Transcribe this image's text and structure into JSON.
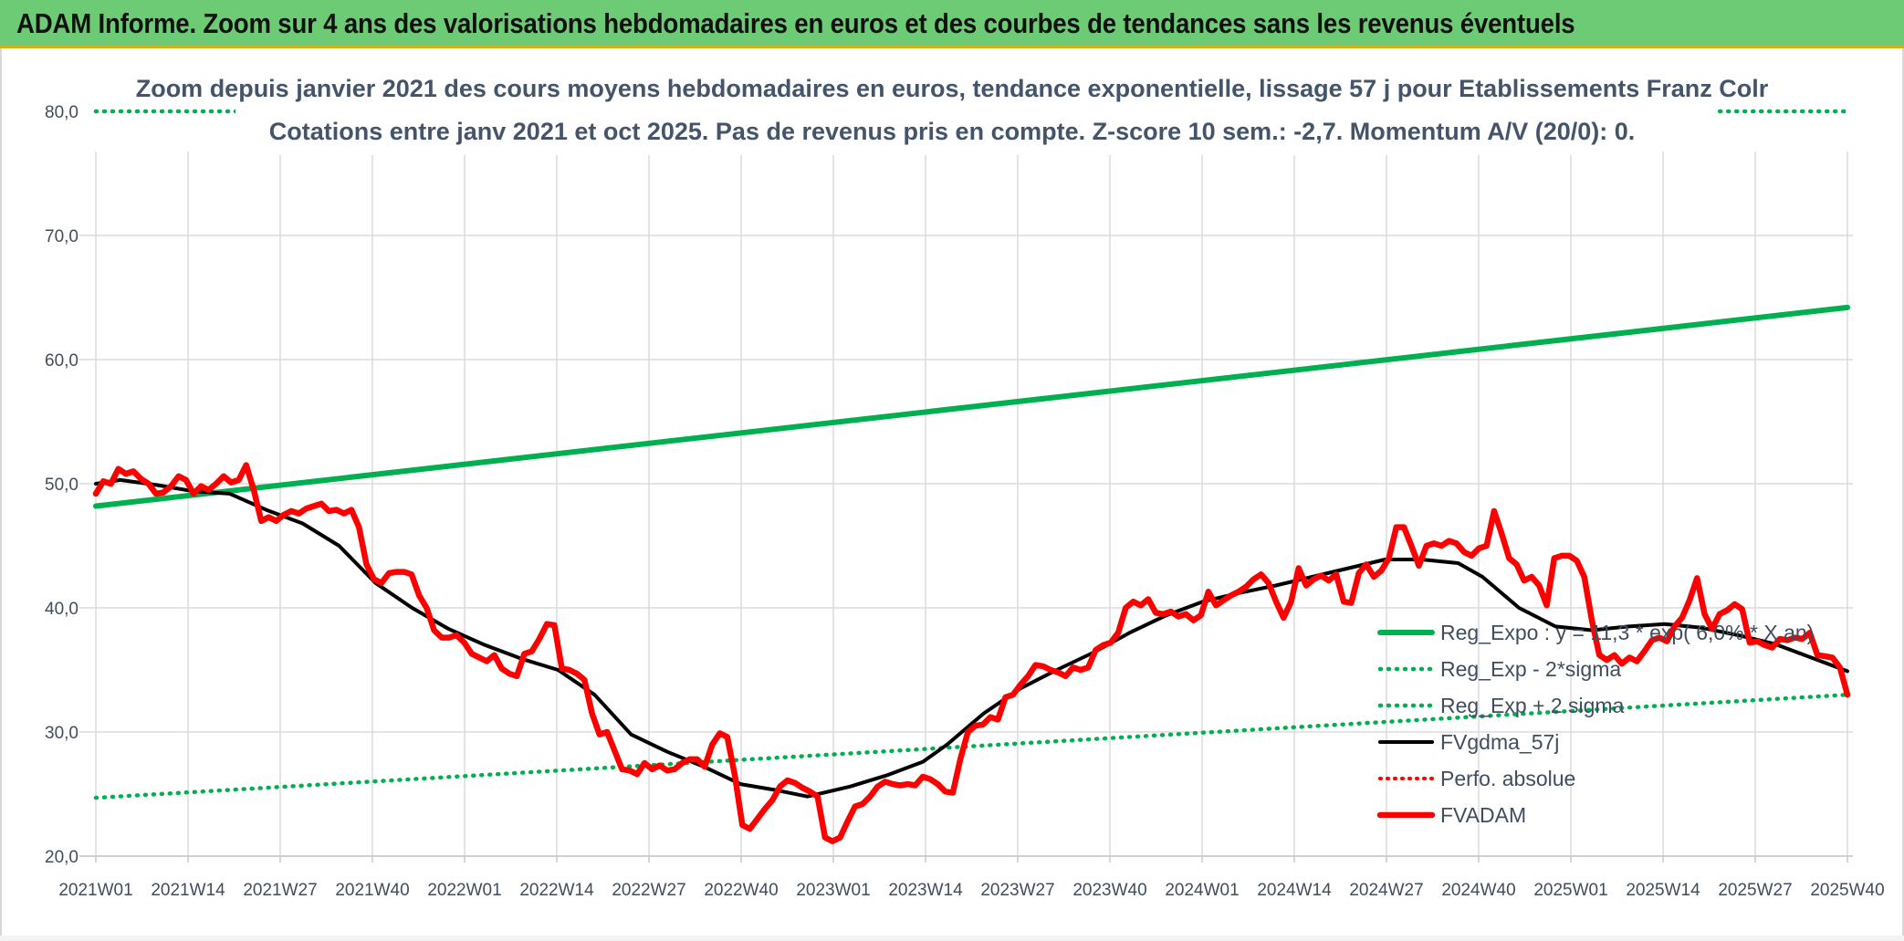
{
  "header": {
    "title": "ADAM Informe. Zoom sur 4 ans des valorisations hebdomadaires en euros et des courbes de tendances sans les revenus éventuels"
  },
  "chart_data": {
    "type": "line",
    "subtitle_line1": "Zoom depuis janvier 2021 des cours moyens hebdomadaires en euros, tendance exponentielle, lissage 57 j pour Etablissements Franz Colr",
    "subtitle_line2": "Cotations entre janv 2021 et oct 2025. Pas de revenus pris en compte. Z-score 10 sem.: -2,7. Momentum A/V (20/0): 0.",
    "ylim": [
      20,
      80
    ],
    "y_ticks": [
      "20,0",
      "30,0",
      "40,0",
      "50,0",
      "60,0",
      "70,0",
      "80,0"
    ],
    "y_tick_values": [
      20,
      30,
      40,
      50,
      60,
      70,
      80
    ],
    "x_ticks": [
      "2021W01",
      "2021W14",
      "2021W27",
      "2021W40",
      "2022W01",
      "2022W14",
      "2022W27",
      "2022W40",
      "2023W01",
      "2023W14",
      "2023W27",
      "2023W40",
      "2024W01",
      "2024W14",
      "2024W27",
      "2024W40",
      "2025W01",
      "2025W14",
      "2025W27",
      "2025W40"
    ],
    "grid": true,
    "legend_position": "right",
    "series": [
      {
        "name": "Reg_Expo : y = 11,3 * exp( 6,0% * X  an)",
        "color": "#00b050",
        "style": "solid",
        "points": [
          [
            0,
            48.2
          ],
          [
            247,
            64.2
          ]
        ]
      },
      {
        "name": "Reg_Exp - 2*sigma",
        "color": "#00b050",
        "style": "dotted",
        "points": [
          [
            0,
            24.7
          ],
          [
            247,
            33.0
          ]
        ]
      },
      {
        "name": "Reg_Exp + 2 sigma",
        "color": "#00b050",
        "style": "dotted",
        "points": [
          [
            0,
            80.0
          ],
          [
            22,
            80.0
          ],
          [
            null,
            null
          ],
          [
            229,
            80.0
          ],
          [
            247,
            80.0
          ]
        ]
      },
      {
        "name": "FVgdma_57j",
        "color": "#000000",
        "style": "solid",
        "points": [
          [
            0,
            50.0
          ],
          [
            4,
            50.3
          ],
          [
            10,
            49.9
          ],
          [
            16,
            49.4
          ],
          [
            22,
            49.2
          ],
          [
            28,
            47.9
          ],
          [
            34,
            46.8
          ],
          [
            40,
            45.0
          ],
          [
            46,
            42.0
          ],
          [
            52,
            40.0
          ],
          [
            58,
            38.3
          ],
          [
            64,
            37.0
          ],
          [
            70,
            35.9
          ],
          [
            76,
            35.0
          ],
          [
            82,
            33.0
          ],
          [
            88,
            29.8
          ],
          [
            94,
            28.4
          ],
          [
            100,
            27.2
          ],
          [
            106,
            25.8
          ],
          [
            112,
            25.3
          ],
          [
            117,
            24.8
          ],
          [
            124,
            25.6
          ],
          [
            130,
            26.5
          ],
          [
            136,
            27.6
          ],
          [
            140,
            29.0
          ],
          [
            146,
            31.5
          ],
          [
            152,
            33.5
          ],
          [
            158,
            35.0
          ],
          [
            164,
            36.4
          ],
          [
            170,
            38.0
          ],
          [
            176,
            39.4
          ],
          [
            182,
            40.5
          ],
          [
            188,
            41.2
          ],
          [
            194,
            41.8
          ],
          [
            200,
            42.5
          ],
          [
            206,
            43.2
          ],
          [
            212,
            43.9
          ],
          [
            218,
            43.9
          ],
          [
            224,
            43.6
          ],
          [
            228,
            42.5
          ],
          [
            234,
            40.0
          ],
          [
            240,
            38.5
          ],
          [
            246,
            38.2
          ],
          [
            252,
            38.5
          ],
          [
            258,
            38.7
          ],
          [
            264,
            38.4
          ],
          [
            270,
            37.8
          ],
          [
            276,
            37.1
          ],
          [
            282,
            36.0
          ],
          [
            288,
            34.9
          ]
        ]
      },
      {
        "name": "Perfo. absolue",
        "color": "#ff0000",
        "style": "dotted",
        "points": []
      },
      {
        "name": "FVADAM",
        "color": "#ff0000",
        "style": "solid",
        "points": [
          [
            0,
            49.2
          ],
          [
            1,
            50.2
          ],
          [
            2,
            50.0
          ],
          [
            3,
            51.2
          ],
          [
            4,
            50.8
          ],
          [
            5,
            51.0
          ],
          [
            6,
            50.4
          ],
          [
            7,
            50.0
          ],
          [
            8,
            49.2
          ],
          [
            9,
            49.3
          ],
          [
            10,
            49.8
          ],
          [
            11,
            50.6
          ],
          [
            12,
            50.3
          ],
          [
            13,
            49.2
          ],
          [
            14,
            49.8
          ],
          [
            15,
            49.5
          ],
          [
            16,
            50.0
          ],
          [
            17,
            50.6
          ],
          [
            18,
            50.1
          ],
          [
            19,
            50.3
          ],
          [
            20,
            51.5
          ],
          [
            21,
            49.5
          ],
          [
            22,
            47.0
          ],
          [
            23,
            47.3
          ],
          [
            24,
            47.0
          ],
          [
            25,
            47.5
          ],
          [
            26,
            47.8
          ],
          [
            27,
            47.6
          ],
          [
            28,
            48.0
          ],
          [
            29,
            48.2
          ],
          [
            30,
            48.4
          ],
          [
            31,
            47.8
          ],
          [
            32,
            47.9
          ],
          [
            33,
            47.6
          ],
          [
            34,
            47.9
          ],
          [
            35,
            46.5
          ],
          [
            36,
            43.5
          ],
          [
            37,
            42.3
          ],
          [
            38,
            42.0
          ],
          [
            39,
            42.8
          ],
          [
            40,
            42.9
          ],
          [
            41,
            42.9
          ],
          [
            42,
            42.7
          ],
          [
            43,
            41.0
          ],
          [
            44,
            40.0
          ],
          [
            45,
            38.2
          ],
          [
            46,
            37.6
          ],
          [
            47,
            37.6
          ],
          [
            48,
            37.8
          ],
          [
            49,
            37.2
          ],
          [
            50,
            36.3
          ],
          [
            51,
            36.0
          ],
          [
            52,
            35.7
          ],
          [
            53,
            36.2
          ],
          [
            54,
            35.1
          ],
          [
            55,
            34.7
          ],
          [
            56,
            34.5
          ],
          [
            57,
            36.3
          ],
          [
            58,
            36.5
          ],
          [
            59,
            37.5
          ],
          [
            60,
            38.7
          ],
          [
            61,
            38.6
          ],
          [
            62,
            35.1
          ],
          [
            63,
            35.0
          ],
          [
            64,
            34.7
          ],
          [
            65,
            34.2
          ],
          [
            66,
            31.5
          ],
          [
            67,
            29.8
          ],
          [
            68,
            30.0
          ],
          [
            69,
            28.5
          ],
          [
            70,
            27.0
          ],
          [
            71,
            26.9
          ],
          [
            72,
            26.6
          ],
          [
            73,
            27.5
          ],
          [
            74,
            27.0
          ],
          [
            75,
            27.3
          ],
          [
            76,
            26.9
          ],
          [
            77,
            27.0
          ],
          [
            78,
            27.5
          ],
          [
            79,
            27.8
          ],
          [
            80,
            27.8
          ],
          [
            81,
            27.2
          ],
          [
            82,
            29.0
          ],
          [
            83,
            29.9
          ],
          [
            84,
            29.6
          ],
          [
            85,
            26.5
          ],
          [
            86,
            22.5
          ],
          [
            87,
            22.2
          ],
          [
            88,
            23.0
          ],
          [
            89,
            23.8
          ],
          [
            90,
            24.5
          ],
          [
            91,
            25.6
          ],
          [
            92,
            26.1
          ],
          [
            93,
            25.9
          ],
          [
            94,
            25.5
          ],
          [
            95,
            25.2
          ],
          [
            96,
            24.8
          ],
          [
            97,
            21.5
          ],
          [
            98,
            21.2
          ],
          [
            99,
            21.5
          ],
          [
            100,
            22.8
          ],
          [
            101,
            24.0
          ],
          [
            102,
            24.2
          ],
          [
            103,
            24.8
          ],
          [
            104,
            25.6
          ],
          [
            105,
            26.0
          ],
          [
            106,
            25.8
          ],
          [
            107,
            25.7
          ],
          [
            108,
            25.8
          ],
          [
            109,
            25.7
          ],
          [
            110,
            26.4
          ],
          [
            111,
            26.2
          ],
          [
            112,
            25.8
          ],
          [
            113,
            25.2
          ],
          [
            114,
            25.1
          ],
          [
            115,
            27.8
          ],
          [
            116,
            30.0
          ],
          [
            117,
            30.5
          ],
          [
            118,
            30.6
          ],
          [
            119,
            31.2
          ],
          [
            120,
            31.0
          ],
          [
            121,
            32.8
          ],
          [
            122,
            33.0
          ],
          [
            123,
            33.8
          ],
          [
            124,
            34.5
          ],
          [
            125,
            35.4
          ],
          [
            126,
            35.3
          ],
          [
            127,
            35.0
          ],
          [
            128,
            34.8
          ],
          [
            129,
            34.5
          ],
          [
            130,
            35.2
          ],
          [
            131,
            35.0
          ],
          [
            132,
            35.2
          ],
          [
            133,
            36.6
          ],
          [
            134,
            37.0
          ],
          [
            135,
            37.2
          ],
          [
            136,
            38.0
          ],
          [
            137,
            40.0
          ],
          [
            138,
            40.5
          ],
          [
            139,
            40.2
          ],
          [
            140,
            40.7
          ],
          [
            141,
            39.6
          ],
          [
            142,
            39.5
          ],
          [
            143,
            39.7
          ],
          [
            144,
            39.3
          ],
          [
            145,
            39.5
          ],
          [
            146,
            39.0
          ],
          [
            147,
            39.4
          ],
          [
            148,
            41.3
          ],
          [
            149,
            40.2
          ],
          [
            150,
            40.6
          ],
          [
            151,
            41.0
          ],
          [
            152,
            41.3
          ],
          [
            153,
            41.7
          ],
          [
            154,
            42.3
          ],
          [
            155,
            42.7
          ],
          [
            156,
            42.0
          ],
          [
            157,
            40.5
          ],
          [
            158,
            39.2
          ],
          [
            159,
            40.5
          ],
          [
            160,
            43.2
          ],
          [
            161,
            41.8
          ],
          [
            162,
            42.3
          ],
          [
            163,
            42.6
          ],
          [
            164,
            42.2
          ],
          [
            165,
            42.7
          ],
          [
            166,
            40.5
          ],
          [
            167,
            40.4
          ],
          [
            168,
            42.8
          ],
          [
            169,
            43.5
          ],
          [
            170,
            42.5
          ],
          [
            171,
            43.0
          ],
          [
            172,
            44.0
          ],
          [
            173,
            46.5
          ],
          [
            174,
            46.5
          ],
          [
            175,
            45.0
          ],
          [
            176,
            43.4
          ],
          [
            177,
            45.0
          ],
          [
            178,
            45.2
          ],
          [
            179,
            45.0
          ],
          [
            180,
            45.4
          ],
          [
            181,
            45.2
          ],
          [
            182,
            44.5
          ],
          [
            183,
            44.2
          ],
          [
            184,
            44.8
          ],
          [
            185,
            45.0
          ],
          [
            186,
            47.8
          ],
          [
            187,
            46.0
          ],
          [
            188,
            44.0
          ],
          [
            189,
            43.5
          ],
          [
            190,
            42.2
          ],
          [
            191,
            42.5
          ],
          [
            192,
            41.8
          ],
          [
            193,
            40.2
          ],
          [
            194,
            44.0
          ],
          [
            195,
            44.2
          ],
          [
            196,
            44.2
          ],
          [
            197,
            43.8
          ],
          [
            198,
            42.5
          ],
          [
            199,
            39.0
          ],
          [
            200,
            36.2
          ],
          [
            201,
            35.8
          ],
          [
            202,
            36.2
          ],
          [
            203,
            35.5
          ],
          [
            204,
            36.0
          ],
          [
            205,
            35.7
          ],
          [
            206,
            36.5
          ],
          [
            207,
            37.4
          ],
          [
            208,
            37.6
          ],
          [
            209,
            37.3
          ],
          [
            210,
            38.5
          ],
          [
            211,
            39.2
          ],
          [
            212,
            40.6
          ],
          [
            213,
            42.4
          ],
          [
            214,
            39.5
          ],
          [
            215,
            38.3
          ],
          [
            216,
            39.5
          ],
          [
            217,
            39.8
          ],
          [
            218,
            40.3
          ],
          [
            219,
            39.9
          ],
          [
            220,
            37.2
          ],
          [
            221,
            37.3
          ],
          [
            222,
            37.0
          ],
          [
            223,
            36.8
          ],
          [
            224,
            37.5
          ],
          [
            225,
            37.4
          ],
          [
            226,
            37.6
          ],
          [
            227,
            37.5
          ],
          [
            228,
            38.0
          ],
          [
            229,
            36.2
          ],
          [
            230,
            36.1
          ],
          [
            231,
            36.0
          ],
          [
            232,
            35.2
          ],
          [
            233,
            33.0
          ]
        ]
      }
    ]
  },
  "legend": {
    "items": [
      "Reg_Expo : y = 11,3 * exp( 6,0% * X  an)",
      "Reg_Exp - 2*sigma",
      "Reg_Exp + 2 sigma",
      "FVgdma_57j",
      "Perfo. absolue",
      "FVADAM"
    ]
  }
}
